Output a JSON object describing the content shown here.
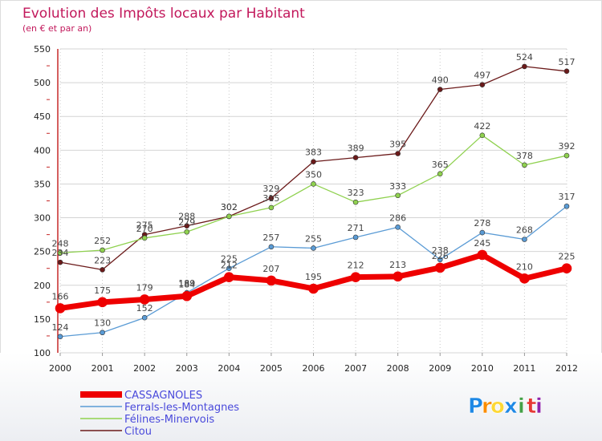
{
  "chart_data": {
    "type": "line",
    "title": "Evolution des Impôts locaux par Habitant",
    "subtitle": "(en € et par an)",
    "x": [
      2000,
      2001,
      2002,
      2003,
      2004,
      2005,
      2006,
      2007,
      2008,
      2009,
      2010,
      2011,
      2012
    ],
    "ylim": [
      100,
      550
    ],
    "yticks": [
      100,
      150,
      200,
      250,
      300,
      350,
      400,
      450,
      500,
      550
    ],
    "grid": true,
    "legend": "bottom-left",
    "series": [
      {
        "name": "Citou",
        "color": "#6b1a1a",
        "width": 1.3,
        "marker": 3,
        "values": [
          234,
          223,
          275,
          288,
          302,
          329,
          383,
          389,
          395,
          490,
          497,
          524,
          517
        ]
      },
      {
        "name": "Félines-Minervois",
        "color": "#8fd14f",
        "width": 1.3,
        "marker": 3,
        "values": [
          248,
          252,
          270,
          279,
          302,
          315,
          350,
          323,
          333,
          365,
          422,
          378,
          392
        ]
      },
      {
        "name": "Ferrals-les-Montagnes",
        "color": "#5a9bd5",
        "width": 1.3,
        "marker": 3,
        "values": [
          124,
          130,
          152,
          189,
          225,
          257,
          255,
          271,
          286,
          238,
          278,
          268,
          317
        ]
      },
      {
        "name": "CASSAGNOLES",
        "color": "#ee0000",
        "width": 7,
        "marker": 6,
        "values": [
          166,
          175,
          179,
          184,
          212,
          207,
          195,
          212,
          213,
          226,
          245,
          210,
          225
        ]
      }
    ],
    "legend_order": [
      "CASSAGNOLES",
      "Ferrals-les-Montagnes",
      "Félines-Minervois",
      "Citou"
    ]
  },
  "logo": {
    "chars": [
      "P",
      "r",
      "o",
      "x",
      "i",
      "t",
      "i"
    ],
    "colors": [
      "#1e88e5",
      "#fb8c00",
      "#fdd835",
      "#1e88e5",
      "#43a047",
      "#e53935",
      "#8e24aa"
    ]
  }
}
